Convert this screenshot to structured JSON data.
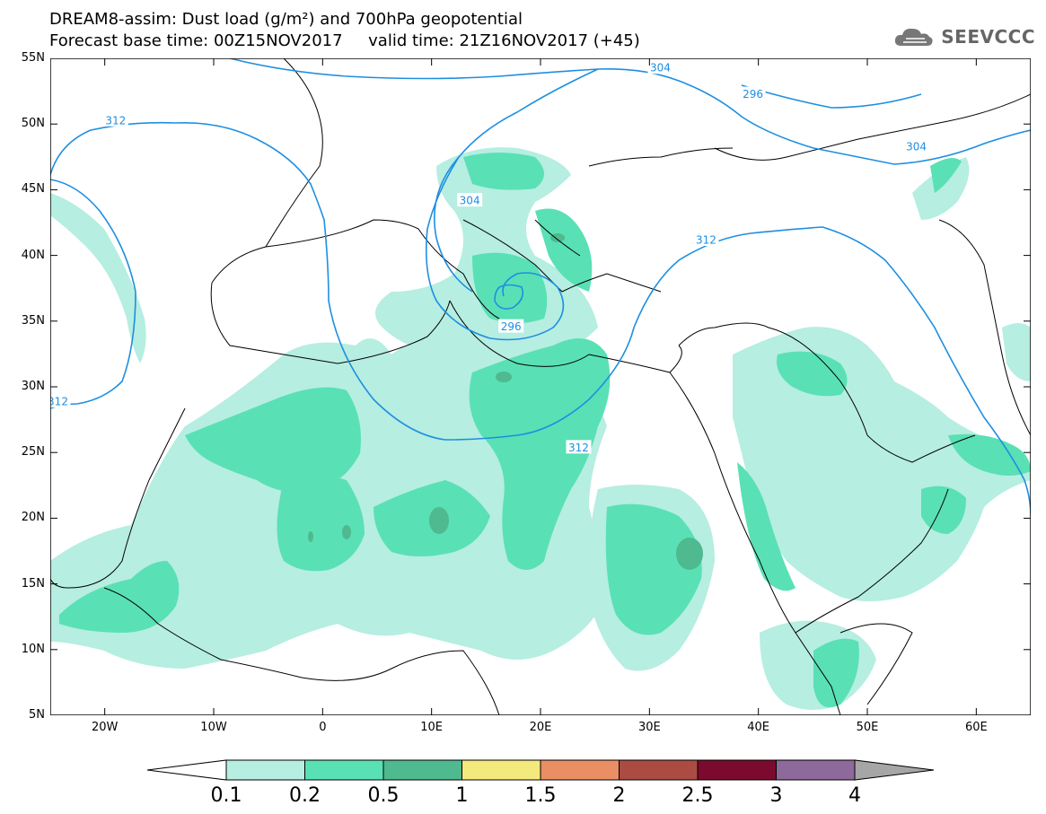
{
  "title_line1": "DREAM8-assim: Dust load (g/m²) and 700hPa geopotential",
  "title_line2": "Forecast base time: 00Z15NOV2017     valid time: 21Z16NOV2017 (+45)",
  "logo": {
    "text": "SEEVCCC",
    "icon": "cloud-logo-icon",
    "color": "#666666"
  },
  "axes": {
    "lat_labels": [
      "55N",
      "50N",
      "45N",
      "40N",
      "35N",
      "30N",
      "25N",
      "20N",
      "15N",
      "10N",
      "5N"
    ],
    "lon_labels": [
      "20W",
      "10W",
      "0",
      "10E",
      "20E",
      "30E",
      "40E",
      "50E",
      "60E"
    ],
    "lat_range": [
      5,
      55
    ],
    "lon_range": [
      -25,
      65
    ]
  },
  "contour_labels": [
    {
      "value": "304",
      "lon": 31,
      "lat": 54.3
    },
    {
      "value": "296",
      "lon": 39.5,
      "lat": 52.3
    },
    {
      "value": "312",
      "lon": -19,
      "lat": 50.3
    },
    {
      "value": "304",
      "lon": 54.5,
      "lat": 48.3
    },
    {
      "value": "304",
      "lon": 13.5,
      "lat": 44.2
    },
    {
      "value": "312",
      "lon": 35.2,
      "lat": 41.2
    },
    {
      "value": "296",
      "lon": 17.3,
      "lat": 34.6
    },
    {
      "value": "312",
      "lon": -24.3,
      "lat": 28.9
    },
    {
      "value": "312",
      "lon": 23.5,
      "lat": 25.4
    }
  ],
  "colorbar": {
    "labels": [
      "0.1",
      "0.2",
      "0.5",
      "1",
      "1.5",
      "2",
      "2.5",
      "3",
      "4"
    ],
    "colors": [
      "#b6eee1",
      "#5ae0b5",
      "#4fb98f",
      "#f4e97c",
      "#ea8e66",
      "#ab4c43",
      "#7c0a2e",
      "#8d6a9b",
      "#a6a6a6"
    ]
  },
  "colors": {
    "contour": "#1e8fe0",
    "dust_light": "#b6eee1",
    "dust_mid": "#5ae0b5",
    "dust_dark": "#4fb98f"
  }
}
